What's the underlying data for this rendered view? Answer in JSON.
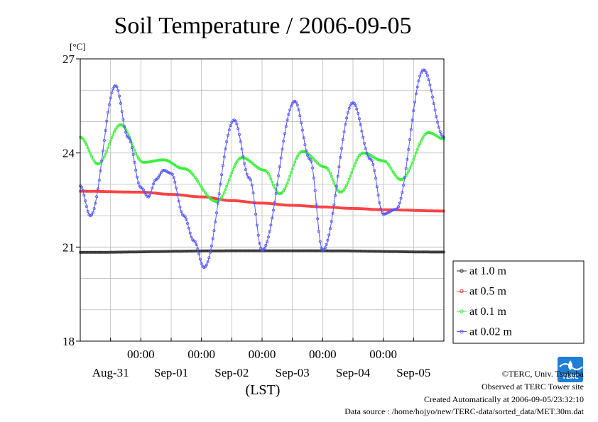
{
  "chart_data": {
    "type": "line",
    "title": "Soil Temperature / 2006-09-05",
    "ylabel_unit": "[°C]",
    "xlabel": "(LST)",
    "ylim": [
      18,
      27
    ],
    "yticks": [
      18,
      21,
      24,
      27
    ],
    "xlim_days": [
      0,
      6
    ],
    "midnight_labels": [
      "00:00",
      "00:00",
      "00:00",
      "00:00",
      "00:00"
    ],
    "date_labels": [
      "Aug-31",
      "Sep-01",
      "Sep-02",
      "Sep-03",
      "Sep-04",
      "Sep-05"
    ],
    "grid": true,
    "legend_position": "right",
    "series": [
      {
        "name": "at 1.0 m",
        "color": "#333333",
        "points": [
          [
            "Aug-31 00:00",
            20.83
          ],
          [
            "Sep-02 12:00",
            20.88
          ],
          [
            "Sep-04 00:00",
            20.88
          ],
          [
            "Sep-05 24:00",
            20.84
          ]
        ]
      },
      {
        "name": "at 0.5 m",
        "color": "#ff3b3b",
        "points": [
          [
            "Aug-31 00:00",
            22.78
          ],
          [
            "Sep-01 00:00",
            22.75
          ],
          [
            "Sep-01 12:00",
            22.68
          ],
          [
            "Sep-02 00:00",
            22.6
          ],
          [
            "Sep-02 12:00",
            22.48
          ],
          [
            "Sep-03 00:00",
            22.4
          ],
          [
            "Sep-03 12:00",
            22.33
          ],
          [
            "Sep-04 00:00",
            22.28
          ],
          [
            "Sep-04 12:00",
            22.23
          ],
          [
            "Sep-05 00:00",
            22.19
          ],
          [
            "Sep-05 24:00",
            22.15
          ]
        ]
      },
      {
        "name": "at 0.1 m",
        "color": "#33ee33",
        "points": [
          [
            "Aug-31 00:00",
            24.5
          ],
          [
            "Aug-31 07:00",
            23.65
          ],
          [
            "Aug-31 16:00",
            24.9
          ],
          [
            "Sep-01 01:00",
            23.7
          ],
          [
            "Sep-01 09:00",
            23.78
          ],
          [
            "Sep-01 17:00",
            23.5
          ],
          [
            "Sep-02 06:00",
            22.45
          ],
          [
            "Sep-02 16:00",
            23.85
          ],
          [
            "Sep-03 01:00",
            23.45
          ],
          [
            "Sep-03 07:00",
            22.7
          ],
          [
            "Sep-03 16:00",
            24.05
          ],
          [
            "Sep-04 01:00",
            23.55
          ],
          [
            "Sep-04 07:00",
            22.75
          ],
          [
            "Sep-04 16:00",
            24.0
          ],
          [
            "Sep-05 00:00",
            23.75
          ],
          [
            "Sep-05 07:00",
            23.15
          ],
          [
            "Sep-05 18:00",
            24.65
          ],
          [
            "Sep-05 24:00",
            24.45
          ]
        ]
      },
      {
        "name": "at 0.02 m",
        "color": "#5555ff",
        "points": [
          [
            "Aug-31 00:00",
            22.95
          ],
          [
            "Aug-31 04:00",
            22.0
          ],
          [
            "Aug-31 14:00",
            26.15
          ],
          [
            "Aug-31 19:00",
            24.5
          ],
          [
            "Sep-01 00:00",
            22.9
          ],
          [
            "Sep-01 03:00",
            22.6
          ],
          [
            "Sep-01 06:00",
            23.15
          ],
          [
            "Sep-01 09:00",
            23.45
          ],
          [
            "Sep-01 12:00",
            23.35
          ],
          [
            "Sep-01 17:00",
            22.0
          ],
          [
            "Sep-01 21:00",
            21.2
          ],
          [
            "Sep-02 01:00",
            20.35
          ],
          [
            "Sep-02 13:00",
            25.05
          ],
          [
            "Sep-02 19:00",
            23.2
          ],
          [
            "Sep-03 00:00",
            20.9
          ],
          [
            "Sep-03 13:00",
            25.65
          ],
          [
            "Sep-03 19:00",
            23.8
          ],
          [
            "Sep-04 00:00",
            20.9
          ],
          [
            "Sep-04 12:00",
            25.6
          ],
          [
            "Sep-04 19:00",
            23.8
          ],
          [
            "Sep-05 00:00",
            22.05
          ],
          [
            "Sep-05 05:00",
            22.2
          ],
          [
            "Sep-05 16:00",
            26.65
          ],
          [
            "Sep-05 24:00",
            24.5
          ]
        ]
      }
    ]
  },
  "footer": {
    "copyright": "©TERC, Univ. Tsukuba",
    "observed": "Observed at TERC Tower site",
    "created": "Created Automatically at 2006-09-05/23:32:10",
    "source": "Data source : /home/hojyo/new/TERC-data/sorted_data/MET.30m.dat",
    "logo_text": "TERC",
    "logo_color": "#1f7fd6"
  }
}
